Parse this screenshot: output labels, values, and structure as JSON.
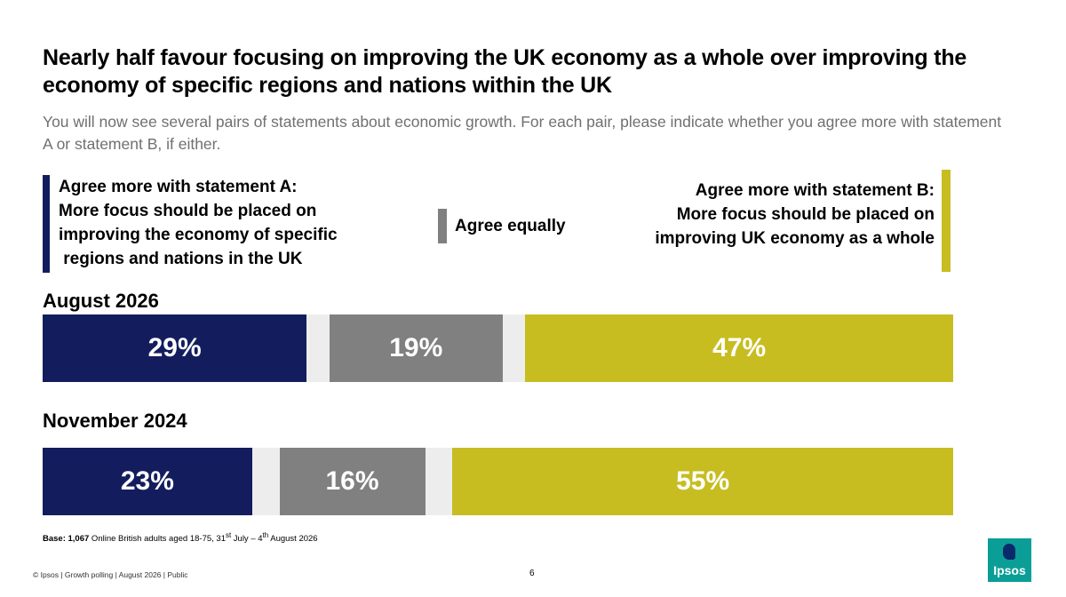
{
  "title": "Nearly half favour focusing on improving the UK economy as a whole over improving the economy of specific regions and nations within the UK",
  "subtitle": "You will now see several pairs of statements about economic growth. For each pair, please indicate whether you agree more with statement A or statement B, if either.",
  "legend": {
    "a_lines": [
      "Agree more with statement A:",
      "More focus should be placed on",
      "improving the economy of specific",
      " regions and nations in the UK"
    ],
    "equal": "Agree equally",
    "b_lines": [
      "Agree more with statement B:",
      "More focus should be placed on",
      "improving UK economy as a whole"
    ]
  },
  "colors": {
    "a": "#131d5e",
    "equal": "#808080",
    "b": "#c7bd21",
    "other": "#ededed"
  },
  "chart_data": {
    "type": "bar",
    "stacked": true,
    "orientation": "horizontal",
    "categories": [
      "August 2026",
      "November 2024"
    ],
    "series": [
      {
        "name": "Agree more with statement A",
        "values": [
          29,
          23
        ],
        "labels": [
          "29%",
          "23%"
        ]
      },
      {
        "name": "",
        "values": [
          2.5,
          3
        ],
        "labels": [
          "",
          ""
        ]
      },
      {
        "name": "Agree equally",
        "values": [
          19,
          16
        ],
        "labels": [
          "19%",
          "16%"
        ]
      },
      {
        "name": "",
        "values": [
          2.5,
          3
        ],
        "labels": [
          "",
          ""
        ]
      },
      {
        "name": "Agree more with statement B",
        "values": [
          47,
          55
        ],
        "labels": [
          "47%",
          "55%"
        ]
      }
    ],
    "xlim": [
      0,
      100
    ]
  },
  "base": {
    "bold": "Base: 1,067",
    "text": " Online British adults aged 18-75, 31",
    "sup1": "st",
    "mid": " July – 4",
    "sup2": "th",
    "end": " August 2026"
  },
  "footer": "© Ipsos | Growth polling | August 2026 | Public",
  "page_number": "6",
  "logo_text": "Ipsos"
}
